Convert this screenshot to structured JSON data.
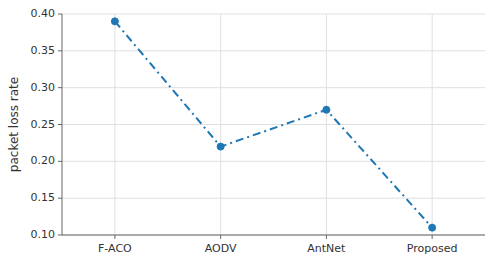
{
  "chart_data": {
    "type": "line",
    "categories": [
      "F-ACO",
      "AODV",
      "AntNet",
      "Proposed"
    ],
    "values": [
      0.39,
      0.22,
      0.27,
      0.11
    ],
    "color": "#1f77b4",
    "marker": "circle",
    "line_style": "dashdot",
    "ylabel": "packet loss rate",
    "ylim": [
      0.1,
      0.4
    ],
    "yticks": [
      {
        "value": 0.1,
        "label": "0.10"
      },
      0.15,
      {
        "value": 0.2,
        "label": "0.20"
      },
      0.25,
      {
        "value": 0.3,
        "label": "0.30"
      },
      0.35,
      {
        "value": 0.4,
        "label": "0.40"
      }
    ],
    "grid": true
  }
}
